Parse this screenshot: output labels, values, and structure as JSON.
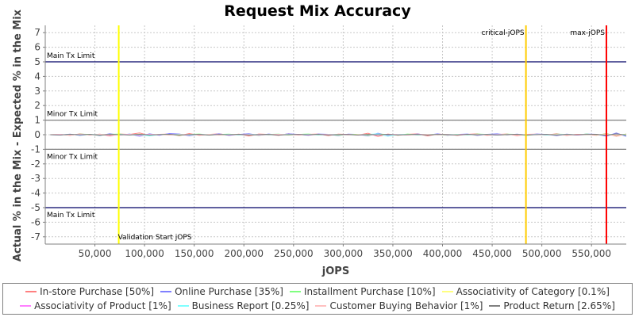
{
  "chart_data": {
    "type": "line",
    "title": "Request Mix Accuracy",
    "xlabel": "jOPS",
    "ylabel": "Actual % in the Mix - Expected % in the Mix",
    "xlim": [
      0,
      585000
    ],
    "ylim": [
      -7.5,
      7.5
    ],
    "x_ticks": [
      50000,
      100000,
      150000,
      200000,
      250000,
      300000,
      350000,
      400000,
      450000,
      500000,
      550000
    ],
    "x_tick_labels": [
      "50,000",
      "100,000",
      "150,000",
      "200,000",
      "250,000",
      "300,000",
      "350,000",
      "400,000",
      "450,000",
      "500,000",
      "550,000"
    ],
    "y_ticks": [
      7,
      6,
      5,
      4,
      3,
      2,
      1,
      0,
      -1,
      -2,
      -3,
      -4,
      -5,
      -6,
      -7
    ],
    "y_tick_labels": [
      "7",
      "6",
      "5",
      "4",
      "3",
      "2",
      "1",
      "0",
      "-1",
      "-2",
      "-3",
      "-4",
      "-5",
      "-6",
      "-7"
    ],
    "grid": true,
    "legend_position": "bottom",
    "x": [
      5000,
      15000,
      25000,
      35000,
      45000,
      55000,
      65000,
      75000,
      85000,
      95000,
      105000,
      115000,
      125000,
      135000,
      145000,
      155000,
      165000,
      175000,
      185000,
      195000,
      205000,
      215000,
      225000,
      235000,
      245000,
      255000,
      265000,
      275000,
      285000,
      295000,
      305000,
      315000,
      325000,
      335000,
      345000,
      355000,
      365000,
      375000,
      385000,
      395000,
      405000,
      415000,
      425000,
      435000,
      445000,
      455000,
      465000,
      475000,
      485000,
      495000,
      505000,
      515000,
      525000,
      535000,
      545000,
      555000,
      565000,
      575000,
      585000
    ],
    "series": [
      {
        "name": "In-store Purchase [50%]",
        "color": "#ff8080",
        "values": [
          0,
          0.03,
          -0.05,
          0.06,
          -0.02,
          0.04,
          -0.08,
          0.05,
          0.02,
          0.12,
          -0.06,
          0.03,
          0.05,
          -0.07,
          0.08,
          -0.04,
          0.02,
          0.06,
          -0.03,
          0.04,
          -0.09,
          0.05,
          0.02,
          -0.05,
          0.07,
          -0.02,
          0.03,
          0.05,
          -0.06,
          0.04,
          0.02,
          -0.03,
          0.1,
          -0.12,
          0.05,
          -0.04,
          0.03,
          0.06,
          -0.08,
          0.04,
          0.02,
          -0.05,
          0.03,
          0.06,
          -0.04,
          0.02,
          0.05,
          -0.06,
          0.03,
          0.04,
          -0.02,
          0.07,
          -0.05,
          0.03,
          0.02,
          -0.04,
          0.08,
          -0.1,
          0.05
        ]
      },
      {
        "name": "Online Purchase [35%]",
        "color": "#8080ff",
        "values": [
          0,
          -0.02,
          0.04,
          -0.05,
          0.03,
          -0.06,
          0.07,
          -0.03,
          0.05,
          -0.1,
          0.06,
          -0.04,
          0.08,
          0.05,
          -0.07,
          0.03,
          -0.02,
          0.06,
          -0.05,
          0.02,
          0.07,
          -0.04,
          0.05,
          -0.03,
          0.06,
          0.02,
          -0.04,
          0.05,
          0.03,
          -0.06,
          0.04,
          0.02,
          -0.08,
          0.1,
          -0.06,
          0.03,
          -0.02,
          0.05,
          -0.03,
          0.06,
          -0.04,
          0.02,
          0.05,
          -0.05,
          0.03,
          0.06,
          -0.02,
          0.04,
          -0.03,
          0.05,
          0.02,
          -0.06,
          0.04,
          -0.02,
          0.05,
          0.03,
          -0.1,
          0.12,
          -0.12
        ]
      },
      {
        "name": "Installment Purchase [10%]",
        "color": "#80ff80",
        "values": [
          0,
          0.02,
          -0.03,
          0.04,
          0.02,
          -0.04,
          0.03,
          0.05,
          -0.02,
          0.04,
          -0.05,
          0.02,
          0.03,
          -0.04,
          0.02,
          0.05,
          -0.03,
          0.02,
          0.04,
          -0.02,
          0.03,
          -0.05,
          0.02,
          0.04,
          -0.03,
          0.02,
          0.05,
          -0.02,
          0.03,
          -0.04,
          0.02,
          0.03,
          -0.05,
          0.04,
          0.02,
          -0.03,
          0.05,
          -0.02,
          0.03,
          0.02,
          -0.04,
          0.03,
          -0.02,
          0.05,
          0.02,
          -0.03,
          0.04,
          0.02,
          -0.05,
          0.03,
          -0.02,
          0.04,
          0.02,
          -0.03,
          0.05,
          -0.02,
          0.06,
          -0.05,
          0.04
        ]
      },
      {
        "name": "Associativity of Category [0.1%]",
        "color": "#ffff80",
        "values": [
          0,
          0.01,
          -0.01,
          0.01,
          0,
          -0.01,
          0.01,
          0,
          0.01,
          -0.01,
          0,
          0.01,
          -0.01,
          0.01,
          0,
          0,
          0.01,
          -0.01,
          0,
          0.01,
          -0.01,
          0,
          0.01,
          0,
          -0.01,
          0.01,
          0,
          -0.01,
          0.01,
          0,
          0,
          0.01,
          -0.01,
          0.01,
          0,
          -0.01,
          0.01,
          0,
          0.01,
          -0.01,
          0,
          0.01,
          0,
          -0.01,
          0.01,
          0,
          -0.01,
          0.01,
          0,
          0.01,
          -0.01,
          0,
          0.01,
          0,
          -0.01,
          0.01,
          0,
          -0.01,
          0.01
        ]
      },
      {
        "name": "Associativity of Product [1%]",
        "color": "#ff80ff",
        "values": [
          0,
          0.02,
          -0.02,
          0.03,
          -0.01,
          0.02,
          -0.03,
          0.01,
          0.02,
          -0.02,
          0.03,
          -0.01,
          0.02,
          0.01,
          -0.03,
          0.02,
          -0.01,
          0.03,
          -0.02,
          0.01,
          0.02,
          -0.03,
          0.01,
          0.02,
          -0.01,
          0.03,
          -0.02,
          0.01,
          0.02,
          -0.01,
          0.03,
          -0.02,
          0.01,
          -0.03,
          0.02,
          0.01,
          -0.02,
          0.03,
          -0.01,
          0.02,
          -0.02,
          0.01,
          0.03,
          -0.01,
          0.02,
          -0.03,
          0.01,
          0.02,
          -0.01,
          0.03,
          -0.02,
          0.01,
          0.02,
          -0.03,
          0.01,
          0.02,
          -0.04,
          0.03,
          -0.02
        ]
      },
      {
        "name": "Business Report [0.25%]",
        "color": "#80ffff",
        "values": [
          0,
          -0.01,
          0.02,
          -0.02,
          0.01,
          0.02,
          -0.01,
          0.02,
          -0.02,
          0.01,
          -0.08,
          0.02,
          -0.01,
          0.03,
          -0.02,
          0.01,
          0.02,
          -0.01,
          0.02,
          -0.03,
          0.01,
          0.02,
          -0.02,
          0.01,
          0.03,
          -0.01,
          0.02,
          -0.02,
          0.01,
          0.02,
          -0.03,
          0.01,
          0.02,
          0.06,
          -0.1,
          0.02,
          0.01,
          -0.02,
          0.03,
          -0.01,
          0.02,
          0.01,
          -0.02,
          0.01,
          0.03,
          -0.02,
          0.01,
          0.02,
          -0.01,
          0.02,
          -0.03,
          0.01,
          0.02,
          -0.01,
          0.02,
          0.01,
          -0.03,
          0.05,
          -0.04
        ]
      },
      {
        "name": "Customer Buying Behavior [1%]",
        "color": "#ffc0c0",
        "values": [
          0,
          0.01,
          -0.02,
          0.02,
          -0.01,
          0.02,
          0.01,
          -0.02,
          0.02,
          -0.01,
          0.01,
          0.02,
          -0.02,
          0.01,
          0.02,
          -0.01,
          0.02,
          -0.02,
          0.01,
          0.01,
          -0.02,
          0.02,
          -0.01,
          0.02,
          0.01,
          -0.02,
          0.01,
          0.02,
          -0.01,
          0.02,
          -0.02,
          0.01,
          0.02,
          -0.01,
          0.02,
          0.01,
          -0.02,
          0.01,
          0.02,
          -0.01,
          0.02,
          -0.02,
          0.01,
          0.02,
          -0.01,
          0.01,
          0.02,
          -0.02,
          0.01,
          -0.01,
          0.02,
          0.01,
          -0.02,
          0.01,
          0.02,
          -0.01,
          0.02,
          -0.02,
          0.01
        ]
      },
      {
        "name": "Product Return [2.65%]",
        "color": "#808080",
        "values": [
          0,
          -0.02,
          0.03,
          -0.01,
          0.02,
          -0.03,
          0.02,
          0.01,
          -0.02,
          0.03,
          -0.02,
          0.01,
          0.03,
          -0.02,
          0.01,
          0.02,
          -0.03,
          0.02,
          -0.01,
          0.03,
          -0.02,
          0.01,
          0.02,
          -0.03,
          0.01,
          0.02,
          -0.01,
          0.03,
          -0.02,
          0.01,
          0.02,
          -0.03,
          0.02,
          -0.01,
          0.03,
          -0.02,
          0.01,
          0.02,
          -0.03,
          0.02,
          0.01,
          -0.02,
          0.03,
          -0.01,
          0.02,
          -0.02,
          0.01,
          0.03,
          -0.02,
          0.01,
          0.02,
          -0.03,
          0.02,
          -0.01,
          0.02,
          0.03,
          -0.05,
          0.06,
          -0.03
        ]
      }
    ],
    "horizontal_markers": [
      {
        "label": "Main Tx Limit",
        "y": 5,
        "color": "#000066"
      },
      {
        "label": "Minor Tx Limit",
        "y": 1,
        "color": "#808080"
      },
      {
        "label": "Minor Tx Limit",
        "y": -1,
        "color": "#808080"
      },
      {
        "label": "Main Tx Limit",
        "y": -5,
        "color": "#000066"
      }
    ],
    "vertical_markers": [
      {
        "label": "Validation Start jOPS",
        "x": 74000,
        "color": "#ffff00"
      },
      {
        "label": "critical-jOPS",
        "x": 484000,
        "color": "#ffcc00"
      },
      {
        "label": "max-jOPS",
        "x": 565000,
        "color": "#ff0000"
      }
    ]
  }
}
